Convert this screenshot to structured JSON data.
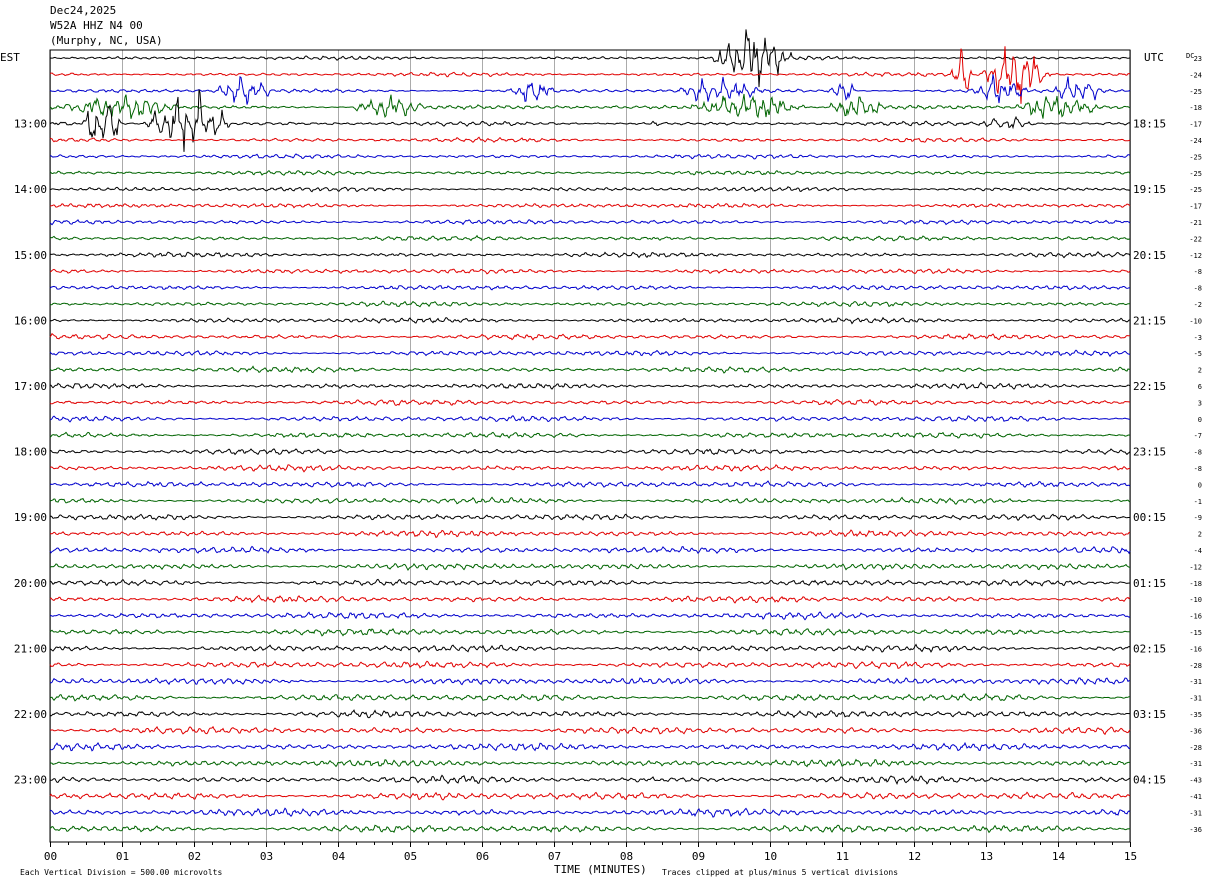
{
  "header": {
    "date": "Dec24,2025",
    "station": "W52A HHZ N4 00",
    "location": "(Murphy, NC, USA)"
  },
  "left_timezone": "EST",
  "right_timezone": "UTC",
  "dc_label": "DC",
  "footer": {
    "scale_note": "Each Vertical Division =  500.00 microvolts",
    "x_title": "TIME (MINUTES)",
    "clip_note": "Traces clipped at plus/minus 5 vertical divisions"
  },
  "colors": {
    "trace_cycle": [
      "#000000",
      "#e00000",
      "#0000cc",
      "#006400"
    ],
    "grid": "#000000"
  },
  "chart_data": {
    "type": "line",
    "title": "",
    "xlabel": "TIME (MINUTES)",
    "x_ticks": [
      "00",
      "01",
      "02",
      "03",
      "04",
      "05",
      "06",
      "07",
      "08",
      "09",
      "10",
      "11",
      "12",
      "13",
      "14",
      "15"
    ],
    "xlim": [
      0,
      15
    ],
    "rows_per_hour": 4,
    "row_count": 48,
    "left_hour_labels": [
      "13:00",
      "14:00",
      "15:00",
      "16:00",
      "17:00",
      "18:00",
      "19:00",
      "20:00",
      "21:00",
      "22:00",
      "23:00"
    ],
    "right_hour_labels": [
      "18:15",
      "19:15",
      "20:15",
      "21:15",
      "22:15",
      "23:15",
      "00:15",
      "01:15",
      "02:15",
      "03:15",
      "04:15"
    ],
    "first_hour_label_row": 4,
    "dc_offsets": [
      23,
      -24,
      -25,
      -18,
      -17,
      -24,
      -25,
      -25,
      -25,
      -17,
      -21,
      -22,
      -12,
      -8,
      -8,
      -2,
      -10,
      -3,
      -5,
      2,
      6,
      3,
      0,
      -7,
      -8,
      -8,
      0,
      -1,
      -9,
      2,
      -4,
      -12,
      -18,
      -10,
      -16,
      -15,
      -16,
      -28,
      -31,
      -31,
      -35,
      -36,
      -28,
      -31,
      -43,
      -41,
      -31,
      -36
    ],
    "events": [
      {
        "row": 0,
        "start_min": 9.2,
        "end_min": 10.3,
        "amplitude": "high"
      },
      {
        "row": 1,
        "start_min": 12.5,
        "end_min": 12.8,
        "amplitude": "high"
      },
      {
        "row": 1,
        "start_min": 12.95,
        "end_min": 13.9,
        "amplitude": "high"
      },
      {
        "row": 2,
        "start_min": 2.3,
        "end_min": 3.1,
        "amplitude": "medium"
      },
      {
        "row": 2,
        "start_min": 6.4,
        "end_min": 7.0,
        "amplitude": "medium"
      },
      {
        "row": 2,
        "start_min": 8.7,
        "end_min": 9.9,
        "amplitude": "medium"
      },
      {
        "row": 2,
        "start_min": 10.8,
        "end_min": 11.2,
        "amplitude": "medium"
      },
      {
        "row": 2,
        "start_min": 12.8,
        "end_min": 13.6,
        "amplitude": "medium"
      },
      {
        "row": 2,
        "start_min": 13.9,
        "end_min": 14.7,
        "amplitude": "medium"
      },
      {
        "row": 3,
        "start_min": 0.2,
        "end_min": 1.8,
        "amplitude": "medium"
      },
      {
        "row": 3,
        "start_min": 4.2,
        "end_min": 5.2,
        "amplitude": "medium"
      },
      {
        "row": 3,
        "start_min": 8.9,
        "end_min": 10.5,
        "amplitude": "medium"
      },
      {
        "row": 3,
        "start_min": 10.8,
        "end_min": 11.6,
        "amplitude": "medium"
      },
      {
        "row": 3,
        "start_min": 13.4,
        "end_min": 14.6,
        "amplitude": "medium"
      },
      {
        "row": 4,
        "start_min": 0.45,
        "end_min": 1.0,
        "amplitude": "high"
      },
      {
        "row": 4,
        "start_min": 1.3,
        "end_min": 2.5,
        "amplitude": "high"
      },
      {
        "row": 4,
        "start_min": 8.35,
        "end_min": 8.45,
        "amplitude": "medium"
      },
      {
        "row": 4,
        "start_min": 12.9,
        "end_min": 13.7,
        "amplitude": "low"
      }
    ]
  }
}
